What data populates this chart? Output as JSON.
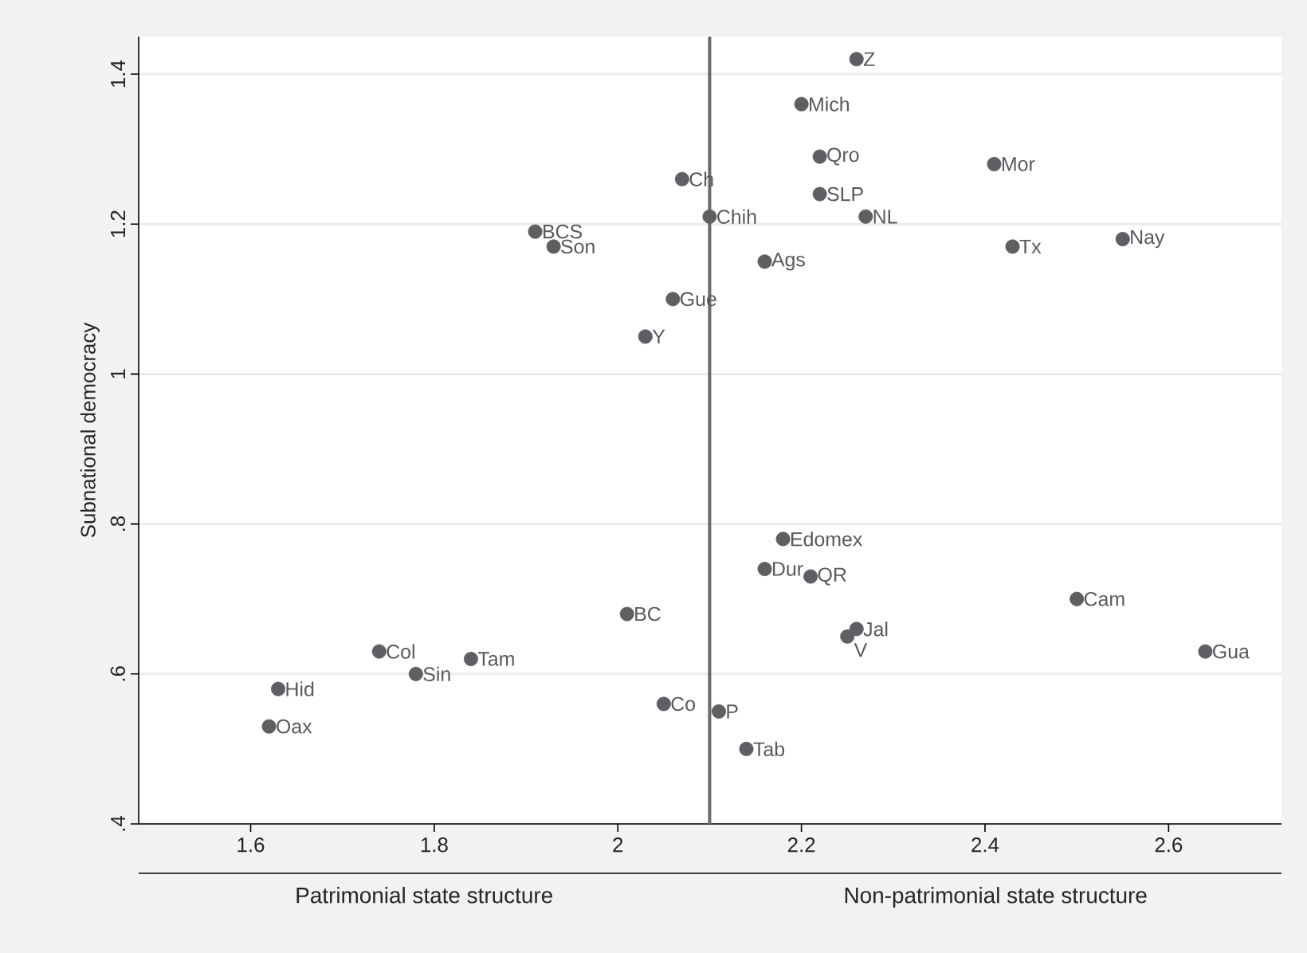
{
  "chart_data": {
    "type": "scatter",
    "ylabel": "Subnational democracy",
    "x": [
      2.26,
      2.2,
      2.22,
      2.22,
      2.27,
      2.41,
      2.43,
      2.55,
      2.16,
      2.07,
      2.1,
      1.91,
      1.93,
      2.06,
      2.03,
      2.01,
      1.74,
      1.84,
      1.78,
      1.63,
      1.62,
      2.05,
      2.11,
      2.14,
      2.18,
      2.16,
      2.21,
      2.5,
      2.26,
      2.25,
      2.64
    ],
    "series": [
      {
        "color": "#5e5e63",
        "values": [
          1.42,
          1.36,
          1.29,
          1.24,
          1.21,
          1.28,
          1.17,
          1.18,
          1.15,
          1.26,
          1.21,
          1.19,
          1.17,
          1.1,
          1.05,
          0.68,
          0.63,
          0.62,
          0.6,
          0.58,
          0.53,
          0.56,
          0.55,
          0.5,
          0.78,
          0.74,
          0.73,
          0.7,
          0.66,
          0.65,
          0.63
        ]
      }
    ],
    "xlim": [
      1.478,
      2.723
    ],
    "ylim": [
      0.4,
      1.45
    ],
    "xticks": [
      1.6,
      1.8,
      2,
      2.2,
      2.4,
      2.6
    ],
    "yticks": [
      {
        "value": 0.4,
        "label": ".4"
      },
      {
        "value": 0.6,
        "label": ".6"
      },
      {
        "value": 0.8,
        "label": ".8"
      },
      1,
      1.2,
      1.4
    ],
    "grid": "y",
    "ref_lines": [
      {
        "axis": "x",
        "value": 2.1,
        "color": "#6a6a6a"
      }
    ],
    "annotations": [
      "Patrimonial state structure",
      "Non-patrimonial state structure",
      {
        "text": "Z",
        "x": 2.26,
        "y": 1.42
      },
      {
        "text": "Mich",
        "x": 2.2,
        "y": 1.36
      },
      {
        "text": "Qro",
        "x": 2.22,
        "y": 1.29
      },
      {
        "text": "SLP",
        "x": 2.22,
        "y": 1.24
      },
      {
        "text": "NL",
        "x": 2.27,
        "y": 1.21
      },
      {
        "text": "Mor",
        "x": 2.41,
        "y": 1.28
      },
      {
        "text": "Tx",
        "x": 2.43,
        "y": 1.17
      },
      {
        "text": "Nay",
        "x": 2.55,
        "y": 1.18
      },
      {
        "text": "Ags",
        "x": 2.16,
        "y": 1.15
      },
      {
        "text": "Ch",
        "x": 2.07,
        "y": 1.26
      },
      {
        "text": "Chih",
        "x": 2.1,
        "y": 1.21
      },
      {
        "text": "BCS",
        "x": 1.91,
        "y": 1.19
      },
      {
        "text": "Son",
        "x": 1.93,
        "y": 1.17
      },
      {
        "text": "Gue",
        "x": 2.06,
        "y": 1.1
      },
      {
        "text": "Y",
        "x": 2.03,
        "y": 1.05
      },
      {
        "text": "BC",
        "x": 2.01,
        "y": 0.68
      },
      {
        "text": "Col",
        "x": 1.74,
        "y": 0.63
      },
      {
        "text": "Tam",
        "x": 1.84,
        "y": 0.62
      },
      {
        "text": "Sin",
        "x": 1.78,
        "y": 0.6
      },
      {
        "text": "Hid",
        "x": 1.63,
        "y": 0.58
      },
      {
        "text": "Oax",
        "x": 1.62,
        "y": 0.53
      },
      {
        "text": "Co",
        "x": 2.05,
        "y": 0.56
      },
      {
        "text": "P",
        "x": 2.11,
        "y": 0.55
      },
      {
        "text": "Tab",
        "x": 2.14,
        "y": 0.5
      },
      {
        "text": "Edomex",
        "x": 2.18,
        "y": 0.78
      },
      {
        "text": "Dur",
        "x": 2.16,
        "y": 0.74
      },
      {
        "text": "QR",
        "x": 2.21,
        "y": 0.73
      },
      {
        "text": "Cam",
        "x": 2.5,
        "y": 0.7
      },
      {
        "text": "Jal",
        "x": 2.26,
        "y": 0.66
      },
      {
        "text": "V",
        "x": 2.25,
        "y": 0.65
      },
      {
        "text": "Gua",
        "x": 2.64,
        "y": 0.63
      }
    ]
  }
}
